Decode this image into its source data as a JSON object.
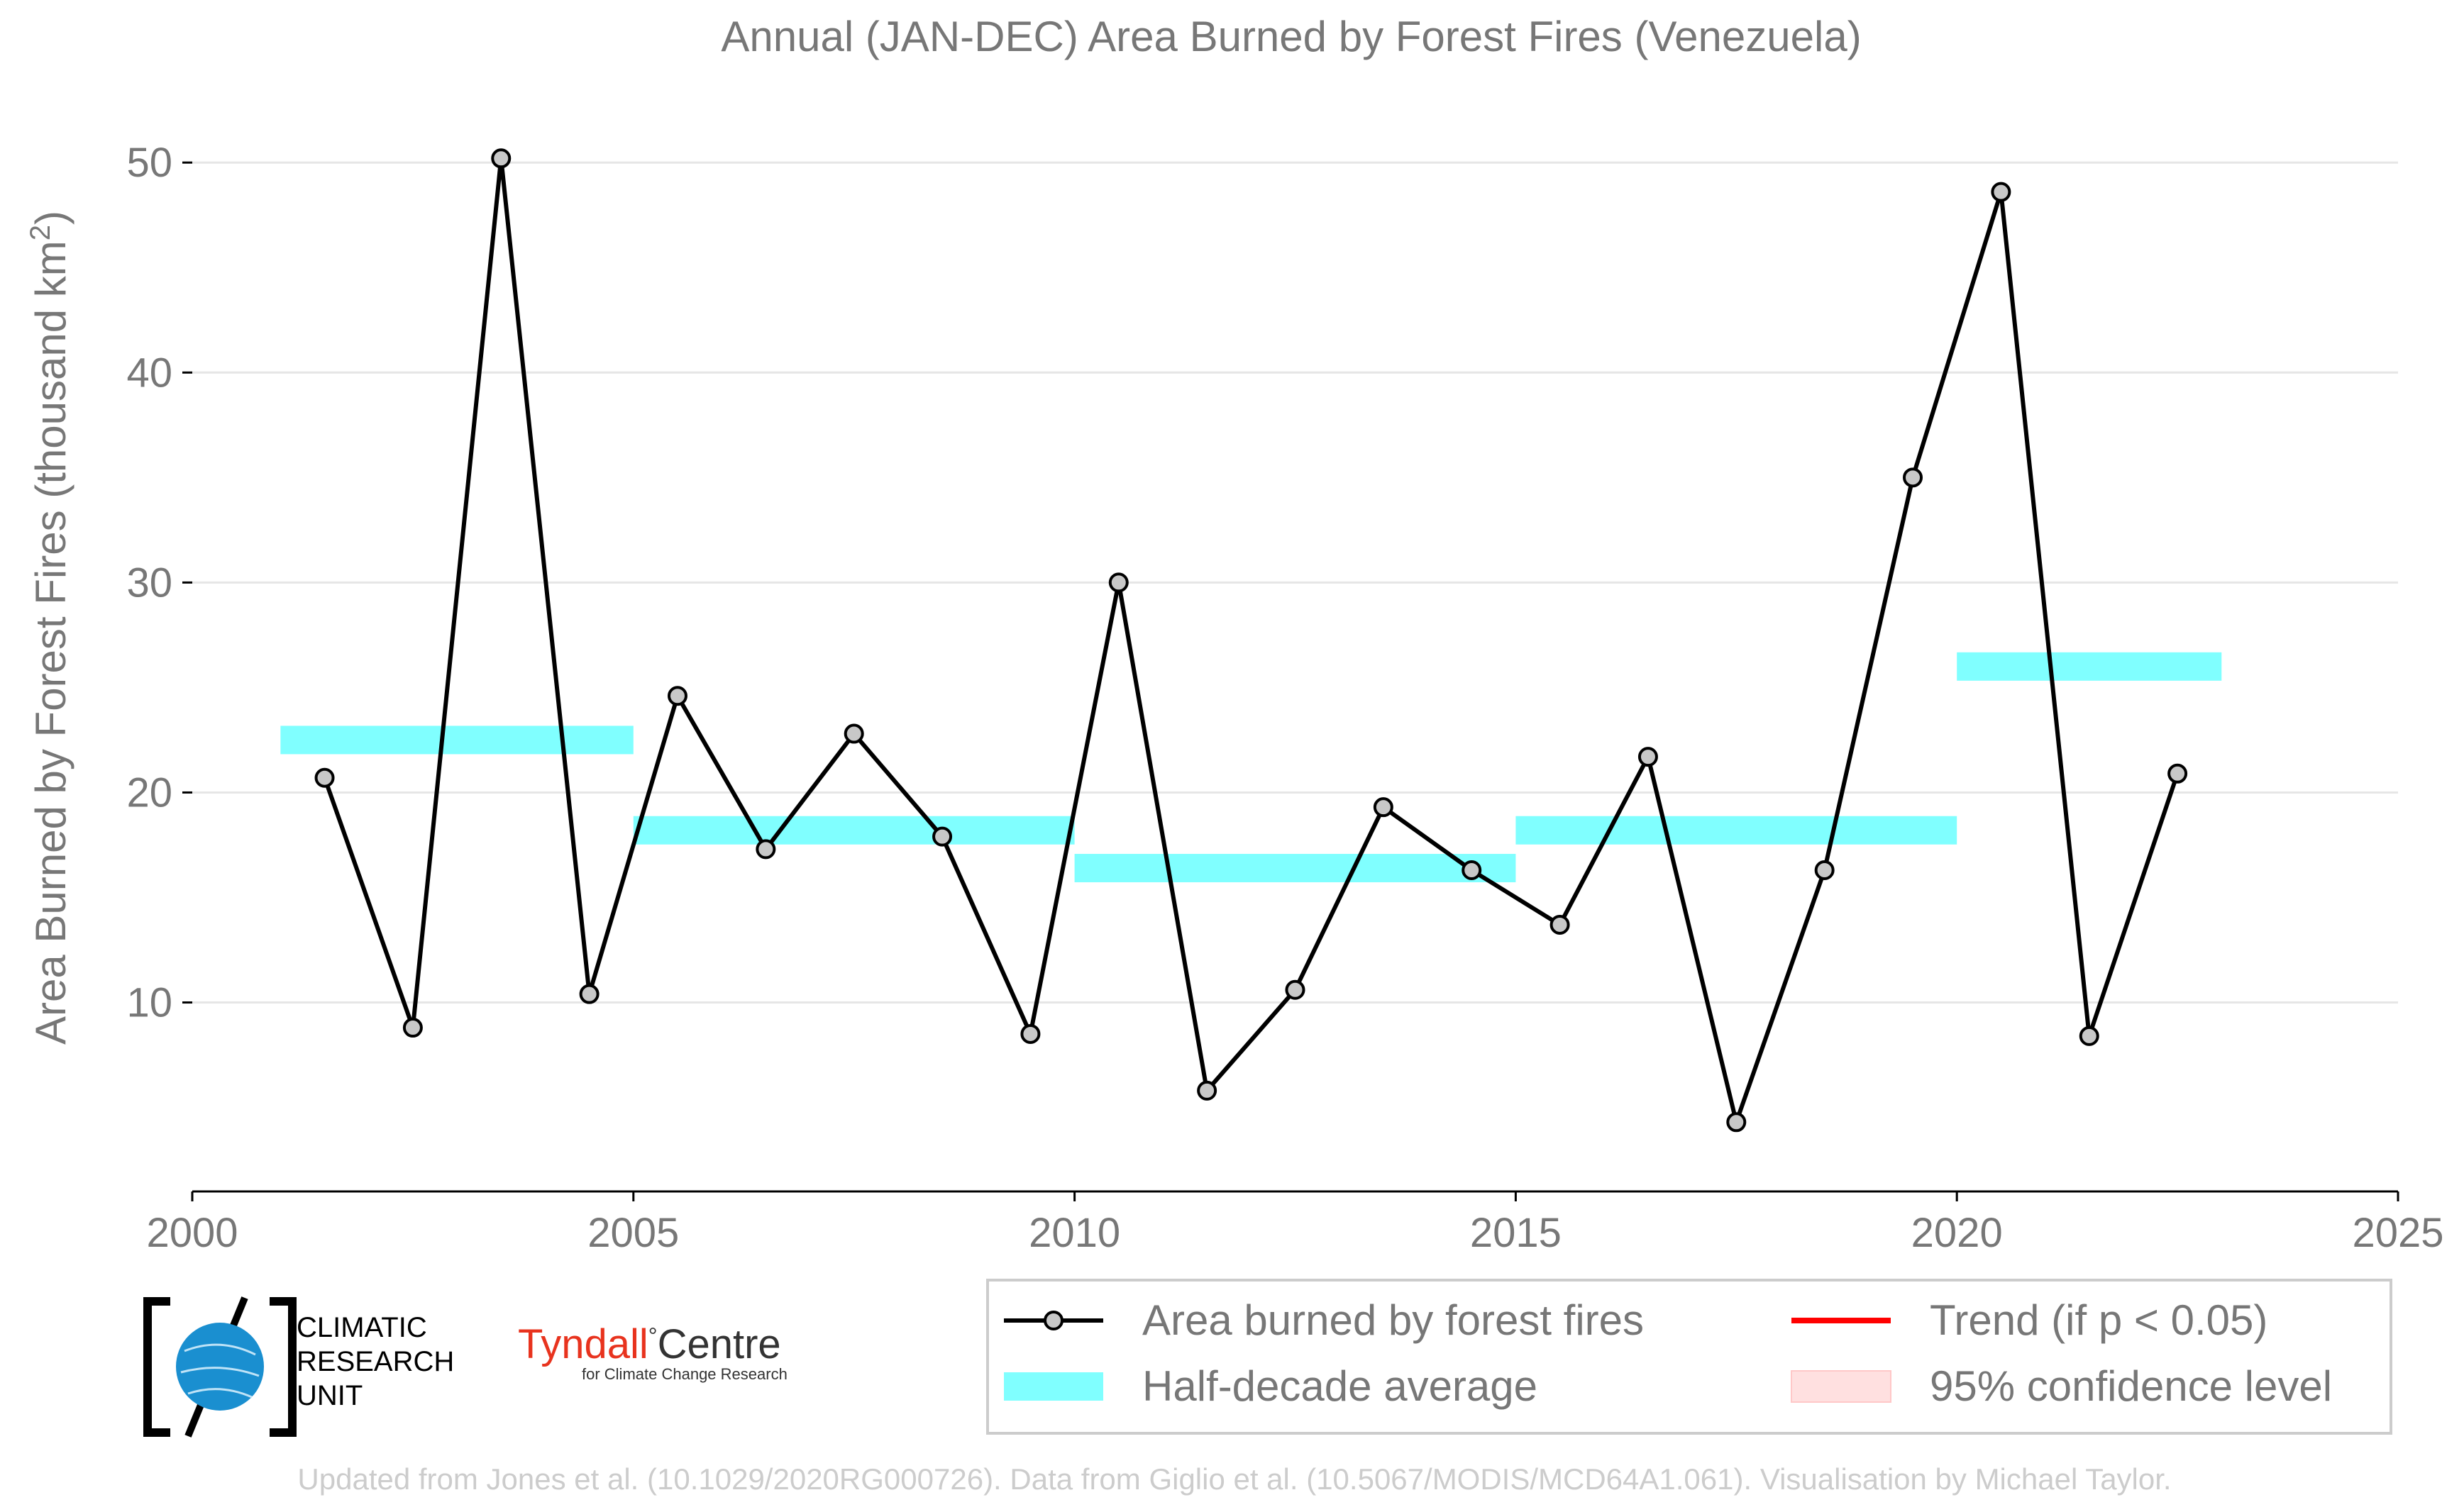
{
  "chart_data": {
    "type": "line",
    "title": "Annual (JAN-DEC) Area Burned by Forest Fires (Venezuela)",
    "ylabel_main": "Area Burned by Forest Fires (thousand km",
    "ylabel_sup": "2",
    "ylabel_end": ")",
    "xlim": [
      2000,
      2025
    ],
    "ylim": [
      1,
      52
    ],
    "x_ticks": [
      2000,
      2005,
      2010,
      2015,
      2020,
      2025
    ],
    "y_ticks": [
      10,
      20,
      30,
      40,
      50
    ],
    "grid": true,
    "series": [
      {
        "name": "Area burned by forest fires",
        "color": "#000000",
        "marker_fill": "#c8c8c8",
        "x": [
          2001.5,
          2002.5,
          2003.5,
          2004.5,
          2005.5,
          2006.5,
          2007.5,
          2008.5,
          2009.5,
          2010.5,
          2011.5,
          2012.5,
          2013.5,
          2014.5,
          2015.5,
          2016.5,
          2017.5,
          2018.5,
          2019.5,
          2020.5,
          2021.5,
          2022.5
        ],
        "y": [
          20.7,
          8.8,
          50.2,
          10.4,
          24.6,
          17.3,
          22.8,
          17.9,
          8.5,
          30.0,
          5.8,
          10.6,
          19.3,
          16.3,
          13.7,
          21.7,
          4.3,
          16.3,
          35.0,
          48.6,
          8.4,
          20.9
        ]
      }
    ],
    "half_decade_average": {
      "name": "Half-decade average",
      "color": "#80ffff",
      "segments": [
        {
          "x_start": 2001,
          "x_end": 2005,
          "value": 22.5
        },
        {
          "x_start": 2005,
          "x_end": 2010,
          "value": 18.2
        },
        {
          "x_start": 2010,
          "x_end": 2015,
          "value": 16.4
        },
        {
          "x_start": 2015,
          "x_end": 2020,
          "value": 18.2
        },
        {
          "x_start": 2020,
          "x_end": 2023,
          "value": 26.0
        }
      ]
    },
    "legend": {
      "placement": "bottom-right",
      "items": [
        {
          "label": "Area burned by forest fires",
          "kind": "line-marker",
          "color": "#000000"
        },
        {
          "label": "Trend (if p < 0.05)",
          "kind": "line",
          "color": "#ff0000"
        },
        {
          "label": "Half-decade average",
          "kind": "band",
          "color": "#80ffff"
        },
        {
          "label": "95% confidence level",
          "kind": "patch",
          "color": "#ffe0e0"
        }
      ]
    },
    "footer": "Updated from Jones et al. (10.1029/2020RG000726). Data from Giglio et al. (10.5067/MODIS/MCD64A1.061). Visualisation by Michael Taylor."
  },
  "logos": {
    "cru_lines": [
      "CLIMATIC",
      "RESEARCH",
      "UNIT"
    ],
    "tyndall_name": "Tyndall",
    "tyndall_degree": "°",
    "tyndall_centre": "Centre",
    "tyndall_sub": "for Climate Change Research"
  },
  "colors": {
    "text_gray": "#777777",
    "footer_gray": "#cccccc",
    "grid": "#e6e6e6",
    "cru_blue": "#1a8fd0",
    "tyndall_red": "#e8331e"
  }
}
